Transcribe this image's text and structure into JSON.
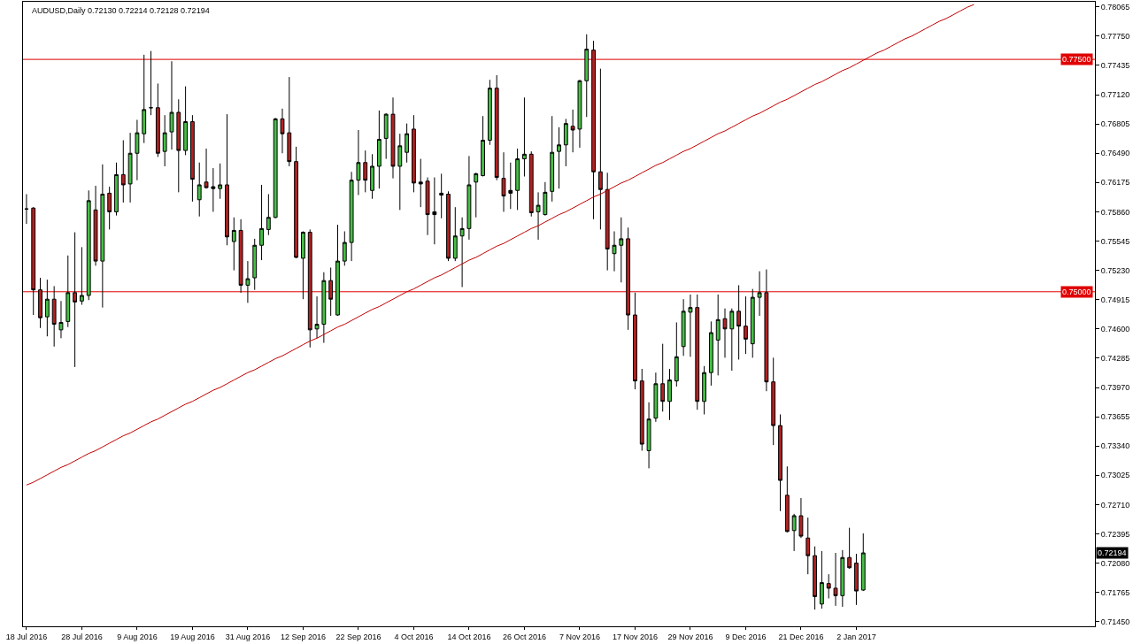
{
  "chart_data": {
    "type": "candlestick",
    "title": "AUDUSD,Daily 0.72130 0.72214 0.72128 0.72194",
    "categories": [
      "18 Jul 2016",
      null,
      null,
      null,
      null,
      null,
      null,
      null,
      "28 Jul 2016",
      null,
      null,
      null,
      null,
      null,
      null,
      null,
      "9 Aug 2016",
      null,
      null,
      null,
      null,
      null,
      null,
      null,
      "19 Aug 2016",
      null,
      null,
      null,
      null,
      null,
      null,
      null,
      "31 Aug 2016",
      null,
      null,
      null,
      null,
      null,
      null,
      null,
      "12 Sep 2016",
      null,
      null,
      null,
      null,
      null,
      null,
      null,
      "22 Sep 2016",
      null,
      null,
      null,
      null,
      null,
      null,
      null,
      "4 Oct 2016",
      null,
      null,
      null,
      null,
      null,
      null,
      null,
      "14 Oct 2016",
      null,
      null,
      null,
      null,
      null,
      null,
      null,
      "26 Oct 2016",
      null,
      null,
      null,
      null,
      null,
      null,
      null,
      "7 Nov 2016",
      null,
      null,
      null,
      null,
      null,
      null,
      null,
      "17 Nov 2016",
      null,
      null,
      null,
      null,
      null,
      null,
      null,
      "29 Nov 2016",
      null,
      null,
      null,
      null,
      null,
      null,
      null,
      "9 Dec 2016",
      null,
      null,
      null,
      null,
      null,
      null,
      null,
      "21 Dec 2016",
      null,
      null,
      null,
      null,
      null,
      null,
      null,
      "2 Jan 2017",
      null,
      null,
      null,
      null,
      null,
      null,
      null,
      null,
      null,
      null,
      null,
      null,
      null,
      null,
      null,
      null,
      null,
      null,
      null,
      null,
      null,
      null,
      null,
      null,
      null,
      null,
      null,
      null,
      null,
      null,
      null,
      null,
      null,
      null
    ],
    "ohlc": [
      [
        0.7589,
        0.7605,
        0.7573,
        0.7589
      ],
      [
        0.759,
        0.7591,
        0.7475,
        0.7502
      ],
      [
        0.7502,
        0.7515,
        0.7461,
        0.7472
      ],
      [
        0.7473,
        0.7513,
        0.7452,
        0.7492
      ],
      [
        0.7492,
        0.7506,
        0.7441,
        0.7465
      ],
      [
        0.7459,
        0.749,
        0.745,
        0.7467
      ],
      [
        0.7468,
        0.7539,
        0.7462,
        0.7499
      ],
      [
        0.7499,
        0.7564,
        0.7419,
        0.7489
      ],
      [
        0.749,
        0.7548,
        0.7486,
        0.7496
      ],
      [
        0.7496,
        0.7609,
        0.7491,
        0.7598
      ],
      [
        0.7588,
        0.7614,
        0.7528,
        0.7533
      ],
      [
        0.7533,
        0.7637,
        0.7483,
        0.7605
      ],
      [
        0.7606,
        0.7613,
        0.7567,
        0.7586
      ],
      [
        0.7586,
        0.7639,
        0.7582,
        0.7626
      ],
      [
        0.7626,
        0.7663,
        0.7596,
        0.7615
      ],
      [
        0.7616,
        0.7671,
        0.7596,
        0.7649
      ],
      [
        0.7649,
        0.7685,
        0.762,
        0.7671
      ],
      [
        0.767,
        0.7755,
        0.766,
        0.7696
      ],
      [
        0.7698,
        0.7759,
        0.769,
        0.7698
      ],
      [
        0.7698,
        0.7724,
        0.7645,
        0.7649
      ],
      [
        0.7651,
        0.769,
        0.7635,
        0.7671
      ],
      [
        0.7672,
        0.7748,
        0.7653,
        0.7693
      ],
      [
        0.7693,
        0.7707,
        0.7607,
        0.7652
      ],
      [
        0.7652,
        0.7721,
        0.7647,
        0.7683
      ],
      [
        0.7683,
        0.769,
        0.7597,
        0.7621
      ],
      [
        0.7599,
        0.7639,
        0.7581,
        0.7615
      ],
      [
        0.7618,
        0.7654,
        0.7611,
        0.7612
      ],
      [
        0.7613,
        0.7633,
        0.7586,
        0.7611
      ],
      [
        0.7611,
        0.7638,
        0.76,
        0.7615
      ],
      [
        0.7615,
        0.7691,
        0.755,
        0.7559
      ],
      [
        0.7554,
        0.758,
        0.7523,
        0.7566
      ],
      [
        0.7566,
        0.7578,
        0.7499,
        0.7507
      ],
      [
        0.7507,
        0.7533,
        0.7488,
        0.7514
      ],
      [
        0.7515,
        0.7557,
        0.7502,
        0.755
      ],
      [
        0.755,
        0.7615,
        0.7534,
        0.7568
      ],
      [
        0.7567,
        0.7605,
        0.7561,
        0.758
      ],
      [
        0.758,
        0.7687,
        0.7579,
        0.7686
      ],
      [
        0.7686,
        0.7697,
        0.7649,
        0.767
      ],
      [
        0.7671,
        0.7731,
        0.7635,
        0.764
      ],
      [
        0.764,
        0.7656,
        0.7536,
        0.7537
      ],
      [
        0.7536,
        0.7565,
        0.7492,
        0.7564
      ],
      [
        0.7564,
        0.7567,
        0.744,
        0.7459
      ],
      [
        0.746,
        0.7495,
        0.745,
        0.7465
      ],
      [
        0.7465,
        0.7521,
        0.7445,
        0.7512
      ],
      [
        0.7512,
        0.7526,
        0.7474,
        0.7492
      ],
      [
        0.7475,
        0.7572,
        0.7474,
        0.7533
      ],
      [
        0.7533,
        0.7565,
        0.7528,
        0.7553
      ],
      [
        0.7553,
        0.7629,
        0.7533,
        0.762
      ],
      [
        0.762,
        0.7674,
        0.7604,
        0.7639
      ],
      [
        0.7639,
        0.7652,
        0.7607,
        0.762
      ],
      [
        0.7609,
        0.7648,
        0.76,
        0.7635
      ],
      [
        0.7635,
        0.7695,
        0.7611,
        0.7664
      ],
      [
        0.7665,
        0.7692,
        0.7643,
        0.7691
      ],
      [
        0.7691,
        0.7709,
        0.7622,
        0.7635
      ],
      [
        0.7635,
        0.767,
        0.7588,
        0.7657
      ],
      [
        0.765,
        0.7681,
        0.7639,
        0.767
      ],
      [
        0.7675,
        0.769,
        0.7607,
        0.7617
      ],
      [
        0.7616,
        0.7643,
        0.7591,
        0.7618
      ],
      [
        0.7619,
        0.7623,
        0.7561,
        0.7583
      ],
      [
        0.7583,
        0.7623,
        0.7551,
        0.7586
      ],
      [
        0.7604,
        0.7627,
        0.7579,
        0.7606
      ],
      [
        0.7605,
        0.7608,
        0.7533,
        0.7536
      ],
      [
        0.7536,
        0.7591,
        0.7533,
        0.756
      ],
      [
        0.756,
        0.758,
        0.7505,
        0.7568
      ],
      [
        0.7568,
        0.7646,
        0.7556,
        0.7615
      ],
      [
        0.7618,
        0.7628,
        0.758,
        0.7627
      ],
      [
        0.7625,
        0.7689,
        0.7624,
        0.7663
      ],
      [
        0.7663,
        0.7728,
        0.7658,
        0.7719
      ],
      [
        0.7719,
        0.7733,
        0.762,
        0.7623
      ],
      [
        0.7622,
        0.765,
        0.7586,
        0.7603
      ],
      [
        0.7606,
        0.7639,
        0.7589,
        0.7609
      ],
      [
        0.7609,
        0.7654,
        0.7588,
        0.7643
      ],
      [
        0.7643,
        0.7709,
        0.7624,
        0.7648
      ],
      [
        0.7648,
        0.7651,
        0.7581,
        0.7585
      ],
      [
        0.7586,
        0.7607,
        0.7556,
        0.7593
      ],
      [
        0.7583,
        0.7618,
        0.7582,
        0.7607
      ],
      [
        0.7608,
        0.7689,
        0.7597,
        0.765
      ],
      [
        0.7651,
        0.7677,
        0.7611,
        0.7658
      ],
      [
        0.7658,
        0.7686,
        0.7635,
        0.7681
      ],
      [
        0.7678,
        0.7696,
        0.765,
        0.7674
      ],
      [
        0.7675,
        0.7728,
        0.7655,
        0.7727
      ],
      [
        0.7727,
        0.7777,
        0.7688,
        0.7761
      ],
      [
        0.776,
        0.777,
        0.7578,
        0.7629
      ],
      [
        0.7629,
        0.774,
        0.7567,
        0.761
      ],
      [
        0.761,
        0.7628,
        0.7523,
        0.7546
      ],
      [
        0.7541,
        0.7565,
        0.7522,
        0.755
      ],
      [
        0.755,
        0.758,
        0.751,
        0.7557
      ],
      [
        0.7557,
        0.7569,
        0.7459,
        0.7475
      ],
      [
        0.7475,
        0.7499,
        0.7395,
        0.7404
      ],
      [
        0.7404,
        0.7417,
        0.7329,
        0.7336
      ],
      [
        0.7329,
        0.7381,
        0.731,
        0.7363
      ],
      [
        0.7364,
        0.7413,
        0.736,
        0.7401
      ],
      [
        0.7401,
        0.7444,
        0.7371,
        0.7382
      ],
      [
        0.7382,
        0.7417,
        0.7362,
        0.7405
      ],
      [
        0.7404,
        0.7467,
        0.7398,
        0.743
      ],
      [
        0.7441,
        0.7492,
        0.7431,
        0.7479
      ],
      [
        0.7478,
        0.7497,
        0.743,
        0.7483
      ],
      [
        0.7483,
        0.7497,
        0.7373,
        0.7382
      ],
      [
        0.7382,
        0.742,
        0.7368,
        0.7413
      ],
      [
        0.7413,
        0.7468,
        0.7399,
        0.7456
      ],
      [
        0.7448,
        0.7497,
        0.741,
        0.747
      ],
      [
        0.7471,
        0.7482,
        0.7429,
        0.746
      ],
      [
        0.746,
        0.7482,
        0.7415,
        0.7479
      ],
      [
        0.7479,
        0.7507,
        0.7427,
        0.7463
      ],
      [
        0.7463,
        0.7495,
        0.7433,
        0.7449
      ],
      [
        0.7444,
        0.7503,
        0.7429,
        0.7494
      ],
      [
        0.7494,
        0.7522,
        0.7474,
        0.7499
      ],
      [
        0.7499,
        0.7524,
        0.7393,
        0.7403
      ],
      [
        0.7403,
        0.7429,
        0.7335,
        0.7356
      ],
      [
        0.7356,
        0.7368,
        0.7264,
        0.7297
      ],
      [
        0.7281,
        0.7312,
        0.7241,
        0.7242
      ],
      [
        0.7243,
        0.7261,
        0.7221,
        0.7259
      ],
      [
        0.7259,
        0.7278,
        0.7235,
        0.7237
      ],
      [
        0.7235,
        0.7257,
        0.7196,
        0.7216
      ],
      [
        0.7216,
        0.7226,
        0.7158,
        0.7172
      ],
      [
        0.7164,
        0.7221,
        0.7159,
        0.7187
      ],
      [
        0.7186,
        0.7196,
        0.717,
        0.7181
      ],
      [
        0.7181,
        0.7219,
        0.7162,
        0.7173
      ],
      [
        0.7173,
        0.7222,
        0.7161,
        0.7214
      ],
      [
        0.7214,
        0.7246,
        0.7202,
        0.7203
      ],
      [
        0.7208,
        0.7218,
        0.7163,
        0.7178
      ],
      [
        0.7179,
        0.724,
        0.7178,
        0.7219
      ],
      null,
      null,
      null,
      null,
      null,
      null,
      null,
      null,
      null,
      null,
      null,
      null,
      null,
      null,
      null,
      null,
      null,
      null,
      null,
      null,
      null,
      null,
      null,
      null,
      null,
      null,
      null,
      null,
      null,
      null,
      null,
      null,
      null
    ],
    "colors": [
      "#000000",
      "#b22222",
      "#b22222",
      "#46bf46",
      "#b22222",
      "#46bf46",
      "#46bf46",
      "#b22222",
      "#46bf46",
      "#46bf46",
      "#b22222",
      "#46bf46",
      "#b22222",
      "#46bf46",
      "#b22222",
      "#46bf46",
      "#46bf46",
      "#46bf46",
      "#000000",
      "#b22222",
      "#46bf46",
      "#46bf46",
      "#b22222",
      "#46bf46",
      "#b22222",
      "#46bf46",
      "#b22222",
      "#000000",
      "#46bf46",
      "#b22222",
      "#46bf46",
      "#b22222",
      "#46bf46",
      "#46bf46",
      "#46bf46",
      "#46bf46",
      "#46bf46",
      "#b22222",
      "#b22222",
      "#b22222",
      "#46bf46",
      "#b22222",
      "#46bf46",
      "#46bf46",
      "#b22222",
      "#46bf46",
      "#46bf46",
      "#46bf46",
      "#46bf46",
      "#b22222",
      "#46bf46",
      "#46bf46",
      "#46bf46",
      "#b22222",
      "#46bf46",
      "#46bf46",
      "#b22222",
      "#000000",
      "#b22222",
      "#000000",
      "#000000",
      "#b22222",
      "#46bf46",
      "#46bf46",
      "#46bf46",
      "#46bf46",
      "#46bf46",
      "#46bf46",
      "#b22222",
      "#b22222",
      "#000000",
      "#46bf46",
      "#46bf46",
      "#b22222",
      "#46bf46",
      "#46bf46",
      "#46bf46",
      "#46bf46",
      "#46bf46",
      "#b22222",
      "#46bf46",
      "#46bf46",
      "#b22222",
      "#b22222",
      "#b22222",
      "#46bf46",
      "#46bf46",
      "#b22222",
      "#b22222",
      "#b22222",
      "#46bf46",
      "#46bf46",
      "#b22222",
      "#46bf46",
      "#46bf46",
      "#46bf46",
      "#46bf46",
      "#b22222",
      "#46bf46",
      "#46bf46",
      "#46bf46",
      "#b22222",
      "#46bf46",
      "#b22222",
      "#b22222",
      "#46bf46",
      "#46bf46",
      "#b22222",
      "#b22222",
      "#b22222",
      "#b22222",
      "#46bf46",
      "#b22222",
      "#b22222",
      "#b22222",
      "#46bf46",
      "#b22222",
      "#b22222",
      "#46bf46",
      "#b22222",
      "#b22222",
      "#46bf46",
      null,
      null,
      null,
      null,
      null,
      null,
      null,
      null,
      null,
      null,
      null,
      null,
      null,
      null,
      null,
      null,
      null,
      null,
      null,
      null,
      null,
      null,
      null,
      null,
      null,
      null,
      null,
      null,
      null,
      null,
      null,
      null,
      null
    ],
    "series": [
      {
        "type": "line",
        "color": "#c00000",
        "values": [
          0.7292,
          0.7295,
          0.7299,
          0.7303,
          0.7307,
          0.7311,
          0.7314,
          0.7318,
          0.7322,
          0.7326,
          0.7329,
          0.7333,
          0.7337,
          0.7341,
          0.7345,
          0.7348,
          0.7352,
          0.7356,
          0.736,
          0.7363,
          0.7367,
          0.7371,
          0.7375,
          0.7379,
          0.7382,
          0.7386,
          0.739,
          0.7394,
          0.7397,
          0.7401,
          0.7405,
          0.7409,
          0.7413,
          0.7416,
          0.742,
          0.7424,
          0.7428,
          0.7431,
          0.7435,
          0.7439,
          0.7443,
          0.7447,
          0.745,
          0.7454,
          0.7458,
          0.7462,
          0.7465,
          0.7469,
          0.7473,
          0.7477,
          0.7481,
          0.7484,
          0.7488,
          0.7492,
          0.7496,
          0.75,
          0.7503,
          0.7507,
          0.7511,
          0.7515,
          0.7518,
          0.7522,
          0.7526,
          0.753,
          0.7534,
          0.7537,
          0.7541,
          0.7545,
          0.7549,
          0.7552,
          0.7556,
          0.756,
          0.7564,
          0.7568,
          0.7571,
          0.7575,
          0.7579,
          0.7583,
          0.7586,
          0.759,
          0.7594,
          0.7598,
          0.7602,
          0.7605,
          0.7609,
          0.7613,
          0.7617,
          0.762,
          0.7624,
          0.7628,
          0.7632,
          0.7636,
          0.7639,
          0.7643,
          0.7647,
          0.7651,
          0.7654,
          0.7658,
          0.7662,
          0.7666,
          0.767,
          0.7673,
          0.7677,
          0.7681,
          0.7685,
          0.7689,
          0.7692,
          0.7696,
          0.77,
          0.7704,
          0.7707,
          0.7711,
          0.7715,
          0.7719,
          0.7723,
          0.7726,
          0.773,
          0.7734,
          0.7738,
          0.7741,
          0.7745,
          0.7749,
          0.7753,
          0.7757,
          0.776,
          0.7764,
          0.7768,
          0.7772,
          0.7775,
          0.7779,
          0.7783,
          0.7787,
          0.7791,
          0.7794,
          0.7798,
          0.7802,
          0.7806,
          0.7809,
          null,
          null,
          null,
          null,
          null,
          null,
          null,
          null,
          null,
          null,
          null,
          null,
          null,
          null,
          null,
          null,
          null
        ]
      }
    ],
    "ylim": [
      0.714,
      0.7812
    ],
    "yticks": [
      {
        "value": 0.7145,
        "label": "0.71450"
      },
      {
        "value": 0.71765,
        "label": "0.71765"
      },
      {
        "value": 0.7208,
        "label": "0.72080"
      },
      {
        "value": 0.72395,
        "label": "0.72395"
      },
      {
        "value": 0.7271,
        "label": "0.72710"
      },
      {
        "value": 0.73025,
        "label": "0.73025"
      },
      {
        "value": 0.7334,
        "label": "0.73340"
      },
      {
        "value": 0.73655,
        "label": "0.73655"
      },
      {
        "value": 0.7397,
        "label": "0.73970"
      },
      {
        "value": 0.74285,
        "label": "0.74285"
      },
      {
        "value": 0.746,
        "label": "0.74600"
      },
      {
        "value": 0.74915,
        "label": "0.74915"
      },
      {
        "value": 0.7523,
        "label": "0.75230"
      },
      {
        "value": 0.75545,
        "label": "0.75545"
      },
      {
        "value": 0.7586,
        "label": "0.75860"
      },
      {
        "value": 0.76175,
        "label": "0.76175"
      },
      {
        "value": 0.7649,
        "label": "0.76490"
      },
      {
        "value": 0.76805,
        "label": "0.76805"
      },
      {
        "value": 0.7712,
        "label": "0.77120"
      },
      {
        "value": 0.77435,
        "label": "0.77435"
      },
      {
        "value": 0.7775,
        "label": "0.77750"
      },
      {
        "value": 0.78065,
        "label": "0.78065"
      }
    ],
    "ref_lines": [
      {
        "axis": "y",
        "value": 0.775,
        "label": "0.77500",
        "color": "#e00000"
      },
      {
        "axis": "y",
        "value": 0.75,
        "label": "0.75000",
        "color": "#e00000"
      }
    ],
    "annotations": [
      {
        "text": "0.72194",
        "y": 0.72194
      }
    ]
  }
}
